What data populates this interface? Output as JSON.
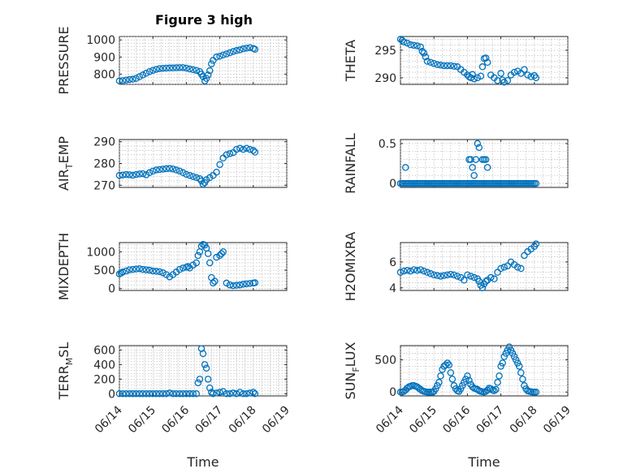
{
  "figure": {
    "title": "Figure 3 high",
    "marker_color": "#0072BD",
    "grid": true,
    "marker": "circle"
  },
  "chart_data": [
    {
      "type": "scatter",
      "id": "pressure",
      "title": "Figure 3 high",
      "ylabel": "PRESSURE",
      "xlabel": "",
      "ylim": [
        740,
        1020
      ],
      "yticks": [
        800,
        900,
        1000
      ],
      "xlim": [
        "06/14",
        "06/19"
      ],
      "xticks": [
        "06/14",
        "06/15",
        "06/16",
        "06/17",
        "06/18",
        "06/19"
      ],
      "x": [
        14.0,
        14.1,
        14.2,
        14.3,
        14.4,
        14.5,
        14.6,
        14.7,
        14.8,
        14.9,
        15.0,
        15.1,
        15.2,
        15.3,
        15.4,
        15.5,
        15.6,
        15.7,
        15.8,
        15.9,
        16.0,
        16.1,
        16.2,
        16.3,
        16.4,
        16.45,
        16.5,
        16.55,
        16.6,
        16.65,
        16.7,
        16.75,
        16.8,
        16.9,
        17.0,
        17.1,
        17.2,
        17.3,
        17.4,
        17.5,
        17.6,
        17.7,
        17.8,
        17.9,
        18.0,
        18.05
      ],
      "y": [
        760,
        762,
        765,
        768,
        770,
        775,
        785,
        795,
        805,
        815,
        822,
        828,
        832,
        834,
        835,
        836,
        836,
        837,
        838,
        838,
        835,
        830,
        826,
        822,
        815,
        800,
        785,
        760,
        775,
        795,
        820,
        860,
        880,
        900,
        905,
        912,
        918,
        925,
        932,
        938,
        942,
        948,
        952,
        955,
        950,
        945
      ]
    },
    {
      "type": "scatter",
      "id": "theta",
      "title": "",
      "ylabel": "THETA",
      "xlabel": "",
      "ylim": [
        288.8,
        297.5
      ],
      "yticks": [
        290,
        295
      ],
      "xlim": [
        "06/14",
        "06/19"
      ],
      "xticks": [
        "06/14",
        "06/15",
        "06/16",
        "06/17",
        "06/18",
        "06/19"
      ],
      "x": [
        14.0,
        14.05,
        14.1,
        14.2,
        14.3,
        14.4,
        14.5,
        14.6,
        14.65,
        14.7,
        14.75,
        14.8,
        14.9,
        15.0,
        15.1,
        15.2,
        15.3,
        15.4,
        15.5,
        15.6,
        15.7,
        15.8,
        15.9,
        16.0,
        16.05,
        16.1,
        16.15,
        16.2,
        16.3,
        16.4,
        16.45,
        16.5,
        16.55,
        16.6,
        16.7,
        16.8,
        16.9,
        17.0,
        17.05,
        17.1,
        17.2,
        17.3,
        17.4,
        17.5,
        17.6,
        17.7,
        17.8,
        17.9,
        18.0,
        18.05
      ],
      "y": [
        297.0,
        296.8,
        296.5,
        296.3,
        296.0,
        295.9,
        295.8,
        295.6,
        294.8,
        294.5,
        293.8,
        293.0,
        292.8,
        292.6,
        292.4,
        292.3,
        292.2,
        292.2,
        292.2,
        292.1,
        292.0,
        291.5,
        291.0,
        290.5,
        290.2,
        290.0,
        290.6,
        289.8,
        290.0,
        290.3,
        292.0,
        293.5,
        293.6,
        292.8,
        290.5,
        290.0,
        289.5,
        290.8,
        289.6,
        289.2,
        289.5,
        290.5,
        291.0,
        291.2,
        290.8,
        291.5,
        290.5,
        290.2,
        290.4,
        290.0
      ]
    },
    {
      "type": "scatter",
      "id": "airtemp",
      "title": "",
      "ylabel": "AIR_TEMP",
      "ylabel_main": "AIR",
      "ylabel_sub": "T",
      "ylabel_tail": "EMP",
      "xlabel": "",
      "ylim": [
        269,
        291
      ],
      "yticks": [
        270,
        280,
        290
      ],
      "xlim": [
        "06/14",
        "06/19"
      ],
      "xticks": [
        "06/14",
        "06/15",
        "06/16",
        "06/17",
        "06/18",
        "06/19"
      ],
      "x": [
        14.0,
        14.1,
        14.2,
        14.3,
        14.4,
        14.5,
        14.6,
        14.7,
        14.8,
        14.9,
        15.0,
        15.1,
        15.2,
        15.3,
        15.4,
        15.5,
        15.6,
        15.7,
        15.8,
        15.9,
        16.0,
        16.1,
        16.2,
        16.3,
        16.4,
        16.45,
        16.5,
        16.55,
        16.6,
        16.7,
        16.8,
        16.9,
        17.0,
        17.1,
        17.2,
        17.3,
        17.4,
        17.5,
        17.6,
        17.7,
        17.8,
        17.9,
        18.0,
        18.05
      ],
      "y": [
        274.5,
        274.7,
        274.9,
        274.8,
        274.6,
        274.9,
        275.2,
        275.3,
        274.8,
        275.8,
        276.5,
        277.0,
        277.2,
        277.4,
        277.6,
        277.7,
        277.5,
        277.0,
        276.5,
        275.8,
        275.0,
        274.5,
        274.0,
        273.5,
        273.0,
        272.0,
        270.5,
        271.2,
        272.5,
        273.5,
        274.5,
        276.0,
        279.5,
        282.5,
        284.0,
        284.5,
        285.0,
        286.5,
        287.0,
        286.5,
        287.0,
        286.5,
        286.0,
        285.2
      ]
    },
    {
      "type": "scatter",
      "id": "rainfall",
      "title": "",
      "ylabel": "RAINFALL",
      "xlabel": "",
      "ylim": [
        -0.05,
        0.55
      ],
      "yticks": [
        0,
        0.5
      ],
      "xlim": [
        "06/14",
        "06/19"
      ],
      "xticks": [
        "06/14",
        "06/15",
        "06/16",
        "06/17",
        "06/18",
        "06/19"
      ],
      "x": [
        14.0,
        14.05,
        14.1,
        14.15,
        14.2,
        14.25,
        14.3,
        14.35,
        14.4,
        14.45,
        14.5,
        14.55,
        14.6,
        14.65,
        14.7,
        14.75,
        14.8,
        14.85,
        14.9,
        14.95,
        15.0,
        15.05,
        15.1,
        15.15,
        15.2,
        15.25,
        15.3,
        15.35,
        15.4,
        15.45,
        15.5,
        15.55,
        15.6,
        15.65,
        15.7,
        15.75,
        15.8,
        15.85,
        15.9,
        15.95,
        16.0,
        16.05,
        16.1,
        16.15,
        16.2,
        16.25,
        16.3,
        16.35,
        16.4,
        16.45,
        16.5,
        16.55,
        16.6,
        16.65,
        16.7,
        16.75,
        16.8,
        16.85,
        16.9,
        16.95,
        17.0,
        17.05,
        17.1,
        17.15,
        17.2,
        17.25,
        17.3,
        17.35,
        17.4,
        17.45,
        17.5,
        17.55,
        17.6,
        17.65,
        17.7,
        17.75,
        17.8,
        17.85,
        17.9,
        17.95,
        18.0,
        18.05,
        14.15,
        16.05,
        16.1,
        16.15,
        16.2,
        16.25,
        16.3,
        16.35,
        16.45,
        16.5,
        16.55,
        16.6
      ],
      "y": [
        0,
        0,
        0,
        0,
        0,
        0,
        0,
        0,
        0,
        0,
        0,
        0,
        0,
        0,
        0,
        0,
        0,
        0,
        0,
        0,
        0,
        0,
        0,
        0,
        0,
        0,
        0,
        0,
        0,
        0,
        0,
        0,
        0,
        0,
        0,
        0,
        0,
        0,
        0,
        0,
        0,
        0,
        0,
        0,
        0,
        0,
        0,
        0,
        0,
        0,
        0,
        0,
        0,
        0,
        0,
        0,
        0,
        0,
        0,
        0,
        0,
        0,
        0,
        0,
        0,
        0,
        0,
        0,
        0,
        0,
        0,
        0,
        0,
        0,
        0,
        0,
        0,
        0,
        0,
        0,
        0,
        0,
        0.2,
        0.3,
        0.3,
        0.2,
        0.1,
        0.3,
        0.5,
        0.45,
        0.3,
        0.3,
        0.3,
        0.2
      ]
    },
    {
      "type": "scatter",
      "id": "mixdepth",
      "title": "",
      "ylabel": "MIXDEPTH",
      "xlabel": "",
      "ylim": [
        -50,
        1250
      ],
      "yticks": [
        0,
        500,
        1000
      ],
      "xlim": [
        "06/14",
        "06/19"
      ],
      "xticks": [
        "06/14",
        "06/15",
        "06/16",
        "06/17",
        "06/18",
        "06/19"
      ],
      "x": [
        14.0,
        14.05,
        14.1,
        14.2,
        14.3,
        14.4,
        14.5,
        14.6,
        14.7,
        14.8,
        14.9,
        15.0,
        15.1,
        15.2,
        15.3,
        15.4,
        15.5,
        15.6,
        15.7,
        15.8,
        15.9,
        16.0,
        16.05,
        16.1,
        16.2,
        16.3,
        16.35,
        16.4,
        16.45,
        16.5,
        16.55,
        16.6,
        16.65,
        16.7,
        16.75,
        16.8,
        16.85,
        16.9,
        17.0,
        17.05,
        17.1,
        17.2,
        17.3,
        17.4,
        17.5,
        17.6,
        17.7,
        17.8,
        17.9,
        18.0,
        18.05
      ],
      "y": [
        400,
        420,
        450,
        480,
        510,
        520,
        530,
        540,
        520,
        510,
        500,
        480,
        470,
        460,
        430,
        380,
        320,
        380,
        450,
        520,
        560,
        580,
        600,
        560,
        640,
        700,
        900,
        1000,
        1150,
        1200,
        1180,
        1100,
        950,
        700,
        300,
        150,
        200,
        850,
        900,
        950,
        1000,
        150,
        100,
        80,
        90,
        100,
        120,
        130,
        140,
        150,
        160
      ]
    },
    {
      "type": "scatter",
      "id": "h2omixra",
      "title": "",
      "ylabel": "H2OMIXRA",
      "xlabel": "",
      "ylim": [
        3.8,
        7.5
      ],
      "yticks": [
        4,
        6
      ],
      "xlim": [
        "06/14",
        "06/19"
      ],
      "xticks": [
        "06/14",
        "06/15",
        "06/16",
        "06/17",
        "06/18",
        "06/19"
      ],
      "x": [
        14.0,
        14.1,
        14.2,
        14.3,
        14.4,
        14.5,
        14.6,
        14.7,
        14.8,
        14.9,
        15.0,
        15.1,
        15.2,
        15.3,
        15.4,
        15.5,
        15.6,
        15.7,
        15.8,
        15.9,
        16.0,
        16.1,
        16.2,
        16.3,
        16.35,
        16.4,
        16.45,
        16.5,
        16.55,
        16.6,
        16.7,
        16.8,
        16.9,
        17.0,
        17.1,
        17.2,
        17.3,
        17.4,
        17.5,
        17.6,
        17.7,
        17.8,
        17.9,
        18.0,
        18.05
      ],
      "y": [
        5.2,
        5.3,
        5.35,
        5.3,
        5.4,
        5.35,
        5.4,
        5.3,
        5.2,
        5.1,
        5.0,
        4.95,
        4.9,
        4.95,
        5.0,
        5.05,
        5.0,
        4.9,
        4.8,
        4.6,
        5.0,
        4.9,
        4.8,
        4.7,
        4.5,
        4.2,
        4.0,
        4.3,
        4.5,
        4.6,
        4.8,
        4.7,
        5.2,
        5.5,
        5.6,
        5.7,
        6.0,
        5.8,
        5.6,
        5.5,
        6.5,
        6.8,
        7.0,
        7.2,
        7.4
      ]
    },
    {
      "type": "scatter",
      "id": "terrmsl",
      "title": "",
      "ylabel": "TERR_MSL",
      "ylabel_main": "TERR",
      "ylabel_sub": "M",
      "ylabel_tail": "SL",
      "xlabel": "Time",
      "ylim": [
        -30,
        660
      ],
      "yticks": [
        0,
        200,
        400,
        600
      ],
      "xlim": [
        "06/14",
        "06/19"
      ],
      "xticks": [
        "06/14",
        "06/15",
        "06/16",
        "06/17",
        "06/18",
        "06/19"
      ],
      "x": [
        14.0,
        14.1,
        14.2,
        14.3,
        14.4,
        14.5,
        14.6,
        14.7,
        14.8,
        14.9,
        15.0,
        15.1,
        15.2,
        15.3,
        15.4,
        15.5,
        15.6,
        15.7,
        15.8,
        15.9,
        16.0,
        16.1,
        16.2,
        16.3,
        16.35,
        16.4,
        16.45,
        16.5,
        16.55,
        16.6,
        16.65,
        16.7,
        16.75,
        16.8,
        16.9,
        17.0,
        17.1,
        17.2,
        17.3,
        17.4,
        17.5,
        17.6,
        17.7,
        17.8,
        17.9,
        18.0,
        18.05
      ],
      "y": [
        0,
        0,
        0,
        0,
        0,
        0,
        0,
        0,
        0,
        0,
        0,
        0,
        0,
        0,
        0,
        10,
        0,
        0,
        0,
        0,
        0,
        0,
        0,
        0,
        150,
        200,
        620,
        550,
        400,
        350,
        200,
        80,
        20,
        0,
        10,
        20,
        30,
        0,
        0,
        10,
        0,
        20,
        0,
        0,
        10,
        20,
        0
      ]
    },
    {
      "type": "scatter",
      "id": "sunflux",
      "title": "",
      "ylabel": "SUN_FLUX",
      "ylabel_main": "SUN",
      "ylabel_sub": "F",
      "ylabel_tail": "LUX",
      "xlabel": "Time",
      "ylim": [
        -60,
        720
      ],
      "yticks": [
        0,
        500
      ],
      "xlim": [
        "06/14",
        "06/19"
      ],
      "xticks": [
        "06/14",
        "06/15",
        "06/16",
        "06/17",
        "06/18",
        "06/19"
      ],
      "x": [
        14.0,
        14.05,
        14.1,
        14.15,
        14.2,
        14.25,
        14.3,
        14.35,
        14.4,
        14.45,
        14.5,
        14.55,
        14.6,
        14.65,
        14.7,
        14.75,
        14.8,
        14.85,
        14.9,
        14.95,
        15.0,
        15.05,
        15.1,
        15.15,
        15.2,
        15.25,
        15.3,
        15.35,
        15.4,
        15.45,
        15.5,
        15.55,
        15.6,
        15.65,
        15.7,
        15.75,
        15.8,
        15.85,
        15.9,
        15.95,
        16.0,
        16.05,
        16.1,
        16.15,
        16.2,
        16.25,
        16.3,
        16.35,
        16.4,
        16.45,
        16.5,
        16.55,
        16.6,
        16.65,
        16.7,
        16.75,
        16.8,
        16.85,
        16.9,
        16.95,
        17.0,
        17.05,
        17.1,
        17.15,
        17.2,
        17.25,
        17.3,
        17.35,
        17.4,
        17.45,
        17.5,
        17.55,
        17.6,
        17.65,
        17.7,
        17.75,
        17.8,
        17.85,
        17.9,
        17.95,
        18.0,
        18.05
      ],
      "y": [
        0,
        0,
        10,
        30,
        60,
        80,
        90,
        100,
        100,
        90,
        80,
        60,
        40,
        20,
        10,
        5,
        0,
        0,
        0,
        0,
        10,
        50,
        100,
        150,
        250,
        350,
        400,
        420,
        450,
        420,
        300,
        200,
        100,
        50,
        20,
        10,
        50,
        100,
        150,
        200,
        250,
        180,
        120,
        80,
        60,
        50,
        40,
        20,
        10,
        5,
        0,
        10,
        30,
        60,
        50,
        30,
        20,
        40,
        150,
        250,
        400,
        450,
        550,
        600,
        650,
        700,
        650,
        600,
        550,
        500,
        450,
        400,
        300,
        200,
        100,
        50,
        20,
        10,
        5,
        0,
        0,
        0
      ]
    }
  ]
}
